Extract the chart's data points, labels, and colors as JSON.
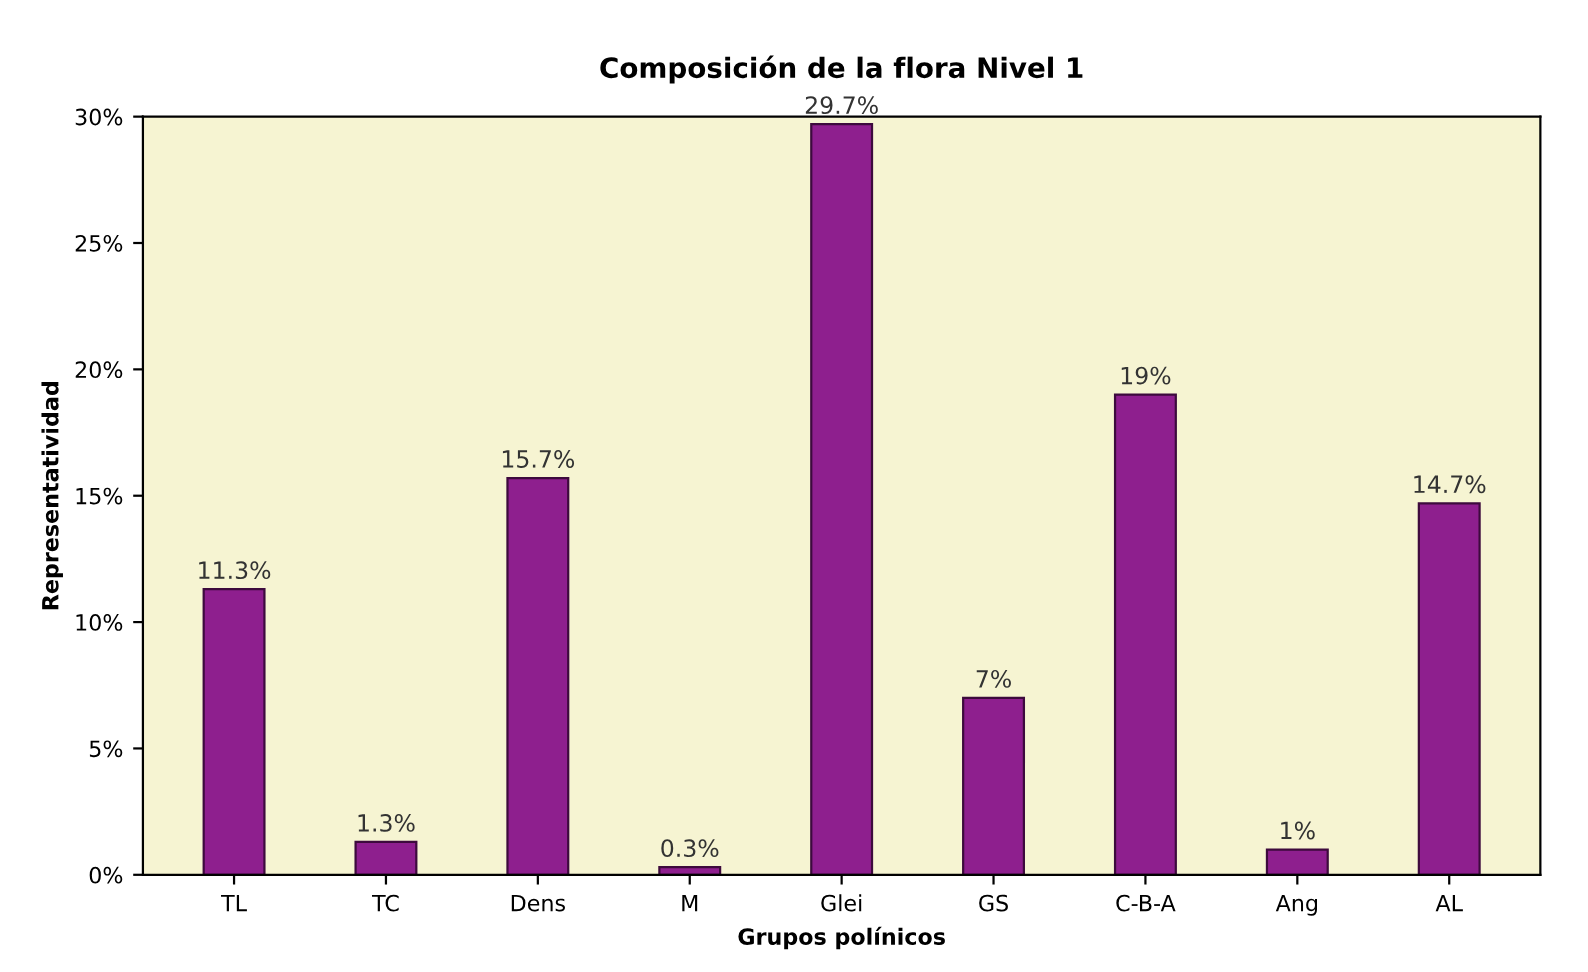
{
  "chart_data": {
    "type": "bar",
    "title": "Composición de la flora Nivel 1",
    "xlabel": "Grupos polínicos",
    "ylabel": "Representatividad",
    "categories": [
      "TL",
      "TC",
      "Dens",
      "M",
      "Glei",
      "GS",
      "C-B-A",
      "Ang",
      "AL"
    ],
    "values": [
      11.3,
      1.3,
      15.7,
      0.3,
      29.7,
      7,
      19,
      1,
      14.7
    ],
    "value_labels": [
      "11.3%",
      "1.3%",
      "15.7%",
      "0.3%",
      "29.7%",
      "7%",
      "19%",
      "1%",
      "14.7%"
    ],
    "color": "#8e1f8e",
    "ylim": [
      0,
      30
    ],
    "yticks": [
      {
        "value": 0,
        "label": "0%"
      },
      {
        "value": 5,
        "label": "5%"
      },
      {
        "value": 10,
        "label": "10%"
      },
      {
        "value": 15,
        "label": "15%"
      },
      {
        "value": 20,
        "label": "20%"
      },
      {
        "value": 25,
        "label": "25%"
      },
      {
        "value": 30,
        "label": "30%"
      }
    ],
    "grid": false,
    "legend": false
  }
}
